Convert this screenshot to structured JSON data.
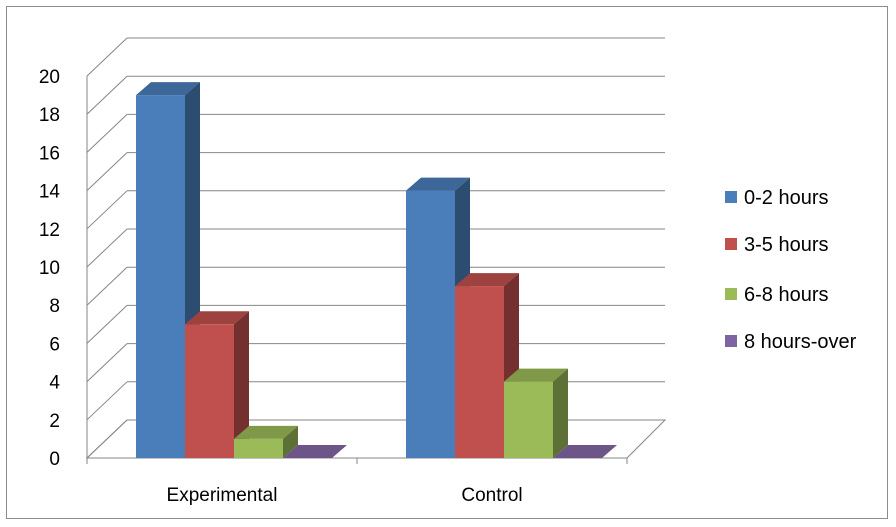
{
  "chart_data": {
    "type": "bar",
    "title": "",
    "xlabel": "",
    "ylabel": "",
    "categories": [
      "Experimental",
      "Control"
    ],
    "series": [
      {
        "name": "0-2 hours",
        "values": [
          19,
          14
        ],
        "color": "#4a7ebb"
      },
      {
        "name": "3-5 hours",
        "values": [
          7,
          9
        ],
        "color": "#c0504d"
      },
      {
        "name": "6-8 hours",
        "values": [
          1,
          4
        ],
        "color": "#9bbb59"
      },
      {
        "name": "8 hours-over",
        "values": [
          0,
          0
        ],
        "color": "#8064a2"
      }
    ],
    "ylim": [
      0,
      20
    ],
    "yticks": [
      "0",
      "2",
      "4",
      "6",
      "8",
      "10",
      "12",
      "14",
      "16",
      "18",
      "20"
    ],
    "grid": true,
    "legend_position": "right",
    "style": "3d-clustered-column"
  }
}
